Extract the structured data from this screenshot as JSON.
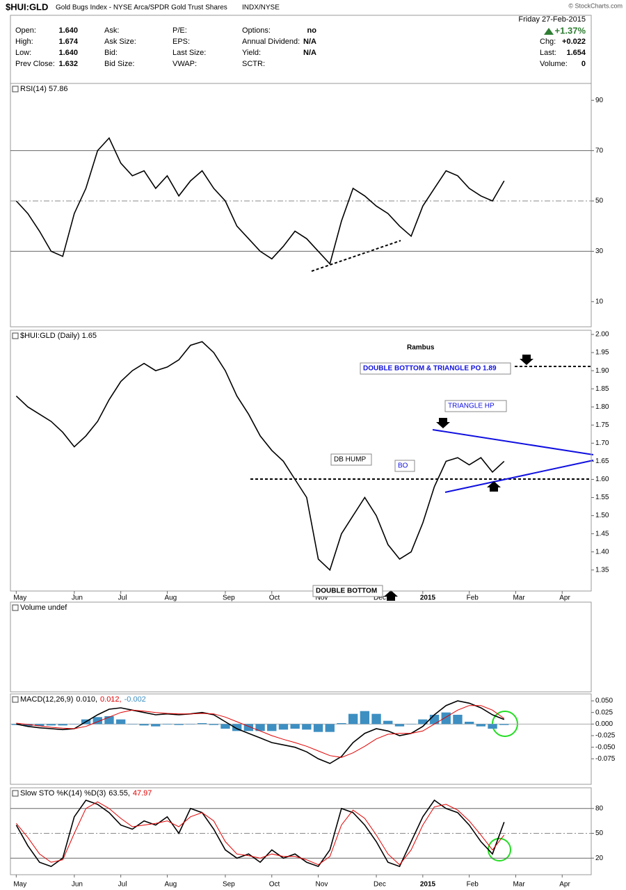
{
  "header": {
    "symbol": "$HUI:GLD",
    "description": "Gold Bugs Index - NYSE Arca/SPDR Gold Trust Shares",
    "exchange": "INDX/NYSE",
    "copyright": "© StockCharts.com",
    "fields": [
      [
        [
          "Open:",
          "1.640"
        ],
        [
          "Ask:",
          ""
        ],
        [
          "P/E:",
          ""
        ],
        [
          "Options:",
          "no"
        ]
      ],
      [
        [
          "High:",
          "1.674"
        ],
        [
          "Ask Size:",
          ""
        ],
        [
          "EPS:",
          ""
        ],
        [
          "Annual Dividend:",
          "N/A"
        ]
      ],
      [
        [
          "Low:",
          "1.640"
        ],
        [
          "Bid:",
          ""
        ],
        [
          "Last Size:",
          ""
        ],
        [
          "Yield:",
          "N/A"
        ]
      ],
      [
        [
          "Prev Close:",
          "1.632"
        ],
        [
          "Bid Size:",
          ""
        ],
        [
          "VWAP:",
          ""
        ],
        [
          "SCTR:",
          ""
        ]
      ]
    ],
    "date": "Friday  27-Feb-2015",
    "change_pct": "+1.37%",
    "quote": [
      [
        "Chg:",
        "+0.022"
      ],
      [
        "Last:",
        "1.654"
      ],
      [
        "Volume:",
        "0"
      ]
    ]
  },
  "chart_data": [
    {
      "type": "line",
      "title": "RSI(14) 57.86",
      "ylim": [
        0,
        96.7
      ],
      "yticks": [
        90,
        70,
        50,
        30,
        10
      ],
      "reference_lines": [
        {
          "value": 70,
          "style": "solid"
        },
        {
          "value": 50,
          "style": "dashed"
        },
        {
          "value": 30,
          "style": "solid"
        }
      ],
      "series": [
        {
          "name": "RSI(14)",
          "color": "#000000",
          "values": [
            50,
            45,
            38,
            30,
            28,
            45,
            55,
            70,
            75,
            65,
            60,
            62,
            55,
            60,
            52,
            58,
            62,
            55,
            50,
            40,
            35,
            30,
            27,
            32,
            38,
            35,
            30,
            25,
            42,
            55,
            52,
            48,
            45,
            40,
            36,
            48,
            55,
            62,
            60,
            55,
            52,
            50,
            58,
            null,
            null,
            null,
            null,
            null,
            null,
            null
          ]
        }
      ]
    },
    {
      "type": "line",
      "title": "$HUI:GLD (Daily) 1.65",
      "ylim": [
        1.292,
        2.0115
      ],
      "yticks": [
        1.35,
        {
          "value": 1.4,
          "label": "1.40"
        },
        1.45,
        {
          "value": 1.5,
          "label": "1.50"
        },
        1.55,
        {
          "value": 1.6,
          "label": "1.60"
        },
        1.65,
        {
          "value": 1.7,
          "label": "1.70"
        },
        1.75,
        {
          "value": 1.8,
          "label": "1.80"
        },
        1.85,
        {
          "value": 1.9,
          "label": "1.90"
        },
        1.95,
        {
          "value": 2.0,
          "label": "2.00"
        }
      ],
      "categories": [
        "May",
        null,
        null,
        null,
        null,
        "Jun",
        null,
        null,
        null,
        "Jul",
        null,
        null,
        null,
        "Aug",
        null,
        null,
        null,
        null,
        "Sep",
        null,
        null,
        null,
        "Oct",
        null,
        null,
        null,
        "Nov",
        null,
        null,
        null,
        null,
        "Dec",
        null,
        null,
        null,
        "2015",
        null,
        null,
        null,
        "Feb",
        null,
        null,
        null,
        "Mar",
        null,
        null,
        null,
        "Apr",
        null,
        null
      ],
      "annotations": [
        "Rambus",
        "DOUBLE BOTTOM & TRIANGLE PO 1.89",
        "TRIANGLE HP",
        "DB HUMP",
        "BO",
        "DOUBLE BOTTOM"
      ],
      "series": [
        {
          "name": "$HUI:GLD",
          "color": "#000000",
          "values": [
            1.83,
            1.8,
            1.78,
            1.76,
            1.73,
            1.69,
            1.72,
            1.76,
            1.82,
            1.87,
            1.9,
            1.92,
            1.9,
            1.91,
            1.93,
            1.97,
            1.98,
            1.95,
            1.9,
            1.83,
            1.78,
            1.72,
            1.68,
            1.65,
            1.6,
            1.55,
            1.38,
            1.35,
            1.45,
            1.5,
            1.55,
            1.5,
            1.42,
            1.38,
            1.4,
            1.48,
            1.58,
            1.65,
            1.66,
            1.64,
            1.66,
            1.62,
            1.65,
            null,
            null,
            null,
            null,
            null,
            null,
            null
          ]
        }
      ]
    },
    {
      "type": "bar",
      "title": "Volume undef"
    },
    {
      "type": "macd",
      "title": "MACD(12,26,9)",
      "legend_values": [
        "0.010,",
        "0.012,",
        "-0.002"
      ],
      "ylim": [
        -0.13,
        0.065
      ],
      "yticks": [
        {
          "value": 0.05,
          "label": "0.050"
        },
        {
          "value": 0.025,
          "label": "0.025"
        },
        {
          "value": 0,
          "label": "0.000"
        },
        {
          "value": -0.025,
          "label": "-0.025"
        },
        {
          "value": -0.05,
          "label": "-0.050"
        },
        {
          "value": -0.075,
          "label": "-0.075"
        }
      ],
      "series": [
        {
          "name": "MACD",
          "color": "#000000",
          "values": [
            0.0,
            -0.005,
            -0.008,
            -0.01,
            -0.012,
            -0.01,
            0.005,
            0.02,
            0.032,
            0.035,
            0.03,
            0.025,
            0.02,
            0.022,
            0.02,
            0.022,
            0.025,
            0.02,
            0.005,
            -0.01,
            -0.02,
            -0.03,
            -0.04,
            -0.045,
            -0.05,
            -0.06,
            -0.075,
            -0.085,
            -0.07,
            -0.04,
            -0.02,
            -0.01,
            -0.015,
            -0.025,
            -0.02,
            -0.005,
            0.02,
            0.04,
            0.05,
            0.045,
            0.035,
            0.02,
            0.01,
            null,
            null,
            null,
            null,
            null,
            null,
            null
          ]
        },
        {
          "name": "Signal",
          "color": "#e00000",
          "values": [
            0.002,
            -0.001,
            -0.004,
            -0.007,
            -0.009,
            -0.01,
            -0.005,
            0.005,
            0.015,
            0.025,
            0.03,
            0.028,
            0.025,
            0.023,
            0.022,
            0.022,
            0.023,
            0.022,
            0.015,
            0.005,
            -0.005,
            -0.015,
            -0.025,
            -0.033,
            -0.04,
            -0.048,
            -0.058,
            -0.068,
            -0.072,
            -0.062,
            -0.048,
            -0.032,
            -0.022,
            -0.02,
            -0.02,
            -0.015,
            0.0,
            0.015,
            0.03,
            0.04,
            0.04,
            0.03,
            0.012,
            null,
            null,
            null,
            null,
            null,
            null,
            null
          ]
        },
        {
          "name": "Histogram",
          "color": "#3d8fc2",
          "kind": "bar",
          "values": [
            -0.002,
            -0.004,
            -0.004,
            -0.003,
            -0.003,
            0,
            0.01,
            0.015,
            0.017,
            0.01,
            0,
            -0.003,
            -0.005,
            -0.001,
            -0.002,
            0,
            0.002,
            -0.002,
            -0.01,
            -0.015,
            -0.015,
            -0.015,
            -0.015,
            -0.012,
            -0.01,
            -0.012,
            -0.017,
            -0.017,
            0.002,
            0.022,
            0.028,
            0.022,
            0.007,
            -0.005,
            0,
            0.01,
            0.02,
            0.025,
            0.02,
            0.005,
            -0.005,
            -0.01,
            -0.002,
            null,
            null,
            null,
            null,
            null,
            null,
            null
          ]
        }
      ]
    },
    {
      "type": "line",
      "title": "Slow STO %K(14) %D(3)",
      "legend_values": [
        "63.55,",
        "47.97"
      ],
      "ylim": [
        0,
        105
      ],
      "yticks": [
        80,
        50,
        20
      ],
      "reference_lines": [
        {
          "value": 80,
          "style": "solid"
        },
        {
          "value": 50,
          "style": "dashed"
        },
        {
          "value": 20,
          "style": "solid"
        }
      ],
      "categories": [
        "May",
        null,
        null,
        null,
        null,
        "Jun",
        null,
        null,
        null,
        "Jul",
        null,
        null,
        null,
        "Aug",
        null,
        null,
        null,
        null,
        "Sep",
        null,
        null,
        null,
        "Oct",
        null,
        null,
        null,
        "Nov",
        null,
        null,
        null,
        null,
        "Dec",
        null,
        null,
        null,
        "2015",
        null,
        null,
        null,
        "Feb",
        null,
        null,
        null,
        "Mar",
        null,
        null,
        null,
        "Apr",
        null,
        null
      ],
      "series": [
        {
          "name": "%K",
          "color": "#000000",
          "values": [
            60,
            35,
            15,
            10,
            20,
            70,
            90,
            85,
            75,
            60,
            55,
            65,
            60,
            70,
            50,
            80,
            75,
            55,
            30,
            20,
            25,
            15,
            30,
            20,
            25,
            15,
            10,
            30,
            80,
            75,
            60,
            40,
            15,
            10,
            40,
            70,
            90,
            80,
            75,
            60,
            40,
            25,
            63.55,
            null,
            null,
            null,
            null,
            null,
            null,
            null
          ]
        },
        {
          "name": "%D",
          "color": "#e00000",
          "values": [
            62,
            45,
            25,
            15,
            18,
            50,
            80,
            88,
            80,
            68,
            58,
            60,
            62,
            65,
            58,
            70,
            75,
            65,
            40,
            25,
            23,
            20,
            25,
            22,
            22,
            18,
            12,
            22,
            60,
            78,
            68,
            48,
            25,
            12,
            30,
            60,
            82,
            85,
            78,
            65,
            48,
            30,
            47.97,
            null,
            null,
            null,
            null,
            null,
            null,
            null
          ]
        }
      ]
    }
  ]
}
